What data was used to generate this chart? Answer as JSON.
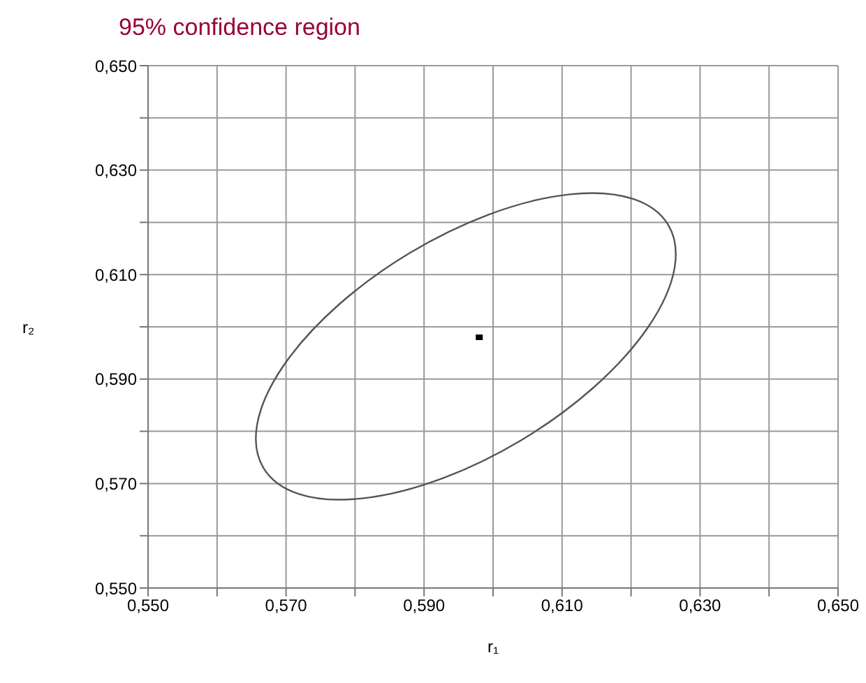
{
  "chart_data": {
    "type": "scatter",
    "title": "95% confidence region",
    "xlabel": "r₁",
    "ylabel": "r₂",
    "xlim": [
      0.55,
      0.65
    ],
    "ylim": [
      0.55,
      0.65
    ],
    "xticks": [
      {
        "value": 0.55,
        "label": "0,550"
      },
      {
        "value": 0.56,
        "label": null
      },
      {
        "value": 0.57,
        "label": "0,570"
      },
      {
        "value": 0.58,
        "label": null
      },
      {
        "value": 0.59,
        "label": "0,590"
      },
      {
        "value": 0.6,
        "label": null
      },
      {
        "value": 0.61,
        "label": "0,610"
      },
      {
        "value": 0.62,
        "label": null
      },
      {
        "value": 0.63,
        "label": "0,630"
      },
      {
        "value": 0.64,
        "label": null
      },
      {
        "value": 0.65,
        "label": "0,650"
      }
    ],
    "yticks": [
      {
        "value": 0.55,
        "label": "0,550"
      },
      {
        "value": 0.56,
        "label": null
      },
      {
        "value": 0.57,
        "label": "0,570"
      },
      {
        "value": 0.58,
        "label": null
      },
      {
        "value": 0.59,
        "label": "0,590"
      },
      {
        "value": 0.6,
        "label": null
      },
      {
        "value": 0.61,
        "label": "0,610"
      },
      {
        "value": 0.62,
        "label": null
      },
      {
        "value": 0.63,
        "label": "0,630"
      },
      {
        "value": 0.64,
        "label": null
      },
      {
        "value": 0.65,
        "label": "0,650"
      }
    ],
    "grid": true,
    "series": [
      {
        "color": "#000000",
        "marker": "square",
        "x": [
          0.598
        ],
        "values": [
          0.598
        ]
      }
    ]
  }
}
